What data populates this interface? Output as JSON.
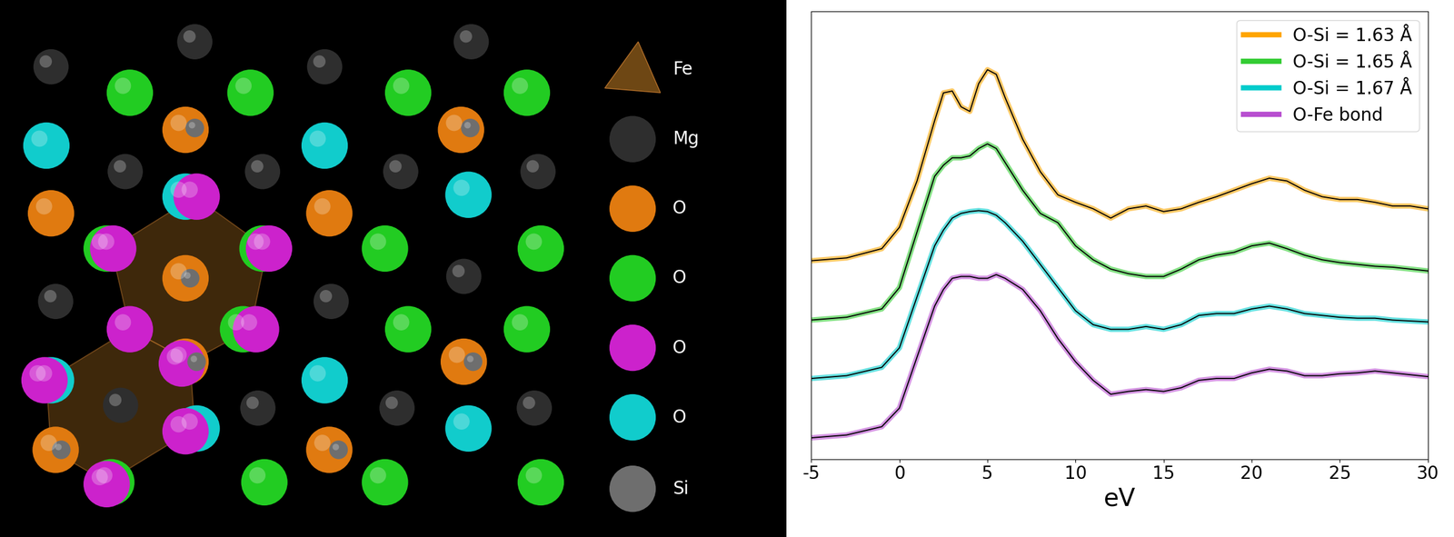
{
  "structure": {
    "legend": [
      {
        "label": "Fe",
        "color": "#8a5a1a"
      },
      {
        "label": "Mg",
        "color": "#2e2e2e"
      },
      {
        "label": "O",
        "color": "#e07a10"
      },
      {
        "label": "O",
        "color": "#22cc22"
      },
      {
        "label": "O",
        "color": "#cc22cc"
      },
      {
        "label": "O",
        "color": "#11cccc"
      },
      {
        "label": "Si",
        "color": "#6e6e6e"
      }
    ]
  },
  "chart_data": {
    "type": "line",
    "xlabel": "eV",
    "x": [
      -5,
      -3,
      -1,
      0,
      1,
      2,
      2.5,
      3,
      3.5,
      4,
      4.5,
      5,
      5.5,
      6,
      7,
      8,
      9,
      10,
      11,
      12,
      13,
      14,
      15,
      16,
      17,
      18,
      19,
      20,
      21,
      22,
      23,
      24,
      25,
      26,
      27,
      28,
      29,
      30
    ],
    "xlim": [
      -5,
      30
    ],
    "xticks": [
      -5,
      0,
      5,
      10,
      15,
      20,
      25,
      30
    ],
    "ylim": [
      0,
      9.66
    ],
    "tick_labels": "x",
    "legend": "upper right",
    "series": [
      {
        "name": "O-Si = 1.63 Å",
        "color": "#ffa500",
        "values": [
          4.28,
          4.34,
          4.54,
          5.0,
          6.0,
          7.3,
          7.9,
          7.94,
          7.6,
          7.5,
          8.1,
          8.4,
          8.3,
          7.8,
          6.9,
          6.2,
          5.7,
          5.54,
          5.4,
          5.2,
          5.4,
          5.46,
          5.34,
          5.4,
          5.54,
          5.66,
          5.8,
          5.94,
          6.06,
          6.0,
          5.8,
          5.66,
          5.6,
          5.6,
          5.54,
          5.46,
          5.46,
          5.4
        ]
      },
      {
        "name": "O-Si = 1.65 Å",
        "color": "#33cc33",
        "values": [
          3.0,
          3.06,
          3.24,
          3.7,
          4.9,
          6.1,
          6.34,
          6.5,
          6.5,
          6.54,
          6.7,
          6.8,
          6.7,
          6.4,
          5.8,
          5.3,
          5.1,
          4.6,
          4.3,
          4.1,
          4.0,
          3.94,
          3.94,
          4.1,
          4.3,
          4.4,
          4.46,
          4.6,
          4.66,
          4.54,
          4.4,
          4.3,
          4.24,
          4.2,
          4.16,
          4.14,
          4.1,
          4.06
        ]
      },
      {
        "name": "O-Si = 1.67 Å",
        "color": "#00cccc",
        "values": [
          1.74,
          1.8,
          1.98,
          2.4,
          3.5,
          4.6,
          4.94,
          5.2,
          5.3,
          5.34,
          5.36,
          5.34,
          5.26,
          5.1,
          4.7,
          4.2,
          3.7,
          3.2,
          2.9,
          2.8,
          2.8,
          2.86,
          2.8,
          2.9,
          3.1,
          3.14,
          3.14,
          3.24,
          3.3,
          3.24,
          3.14,
          3.1,
          3.06,
          3.04,
          3.04,
          3.0,
          2.98,
          2.96
        ]
      },
      {
        "name": "O-Fe bond",
        "color": "#b84fd0",
        "values": [
          0.46,
          0.52,
          0.7,
          1.1,
          2.2,
          3.3,
          3.66,
          3.9,
          3.94,
          3.94,
          3.9,
          3.9,
          3.98,
          3.9,
          3.66,
          3.2,
          2.6,
          2.1,
          1.7,
          1.4,
          1.46,
          1.5,
          1.46,
          1.54,
          1.7,
          1.74,
          1.74,
          1.86,
          1.94,
          1.9,
          1.8,
          1.8,
          1.84,
          1.86,
          1.9,
          1.86,
          1.82,
          1.78
        ]
      }
    ]
  }
}
